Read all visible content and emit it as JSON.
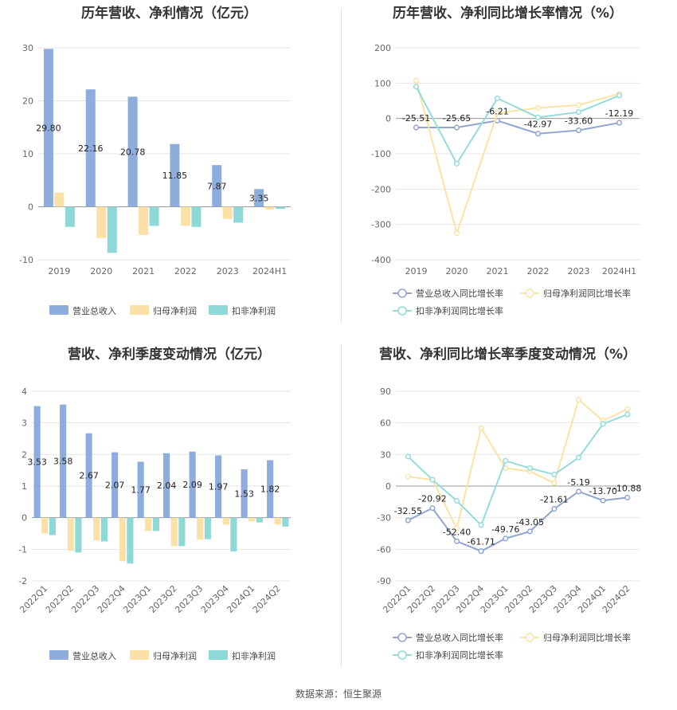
{
  "colors": {
    "revenue": "#8FADDC",
    "net_profit": "#FBE0A8",
    "deducted_profit": "#8ED8D8",
    "revenue_line": "#8FA5CF",
    "net_profit_line": "#FBE3A6",
    "deducted_line": "#94DCDC",
    "grid": "#e6e6e6"
  },
  "source": "数据来源：恒生聚源",
  "chart_data": [
    {
      "type": "bar",
      "title": "历年营收、净利情况（亿元）",
      "categories": [
        "2019",
        "2020",
        "2021",
        "2022",
        "2023",
        "2024H1"
      ],
      "ylim": [
        -10,
        30
      ],
      "yticks": [
        -10,
        0,
        10,
        20,
        30
      ],
      "series": [
        {
          "name": "营业总收入",
          "values": [
            29.8,
            22.16,
            20.78,
            11.85,
            7.87,
            3.35
          ],
          "labels": [
            "29.80",
            "22.16",
            "20.78",
            "11.85",
            "7.87",
            "3.35"
          ]
        },
        {
          "name": "归母净利润",
          "values": [
            2.7,
            -5.9,
            -5.3,
            -3.6,
            -2.3,
            -0.5
          ]
        },
        {
          "name": "扣非净利润",
          "values": [
            -3.8,
            -8.7,
            -3.6,
            -3.8,
            -3.0,
            -0.4
          ]
        }
      ],
      "legend": "bottom"
    },
    {
      "type": "line",
      "title": "历年营收、净利同比增长率情况（%）",
      "categories": [
        "2019",
        "2020",
        "2021",
        "2022",
        "2023",
        "2024H1"
      ],
      "ylim": [
        -400,
        200
      ],
      "yticks": [
        -400,
        -300,
        -200,
        -100,
        0,
        100,
        200
      ],
      "series": [
        {
          "name": "营业总收入同比增长率",
          "values": [
            -25.51,
            -25.65,
            -6.21,
            -42.97,
            -33.6,
            -12.19
          ],
          "labels": [
            "-25.51",
            "-25.65",
            "-6.21",
            "-42.97",
            "-33.60",
            "-12.19"
          ]
        },
        {
          "name": "归母净利润同比增长率",
          "values": [
            107,
            -325,
            15,
            30,
            38,
            70
          ]
        },
        {
          "name": "扣非净利润同比增长率",
          "values": [
            90,
            -128,
            57,
            3,
            18,
            65
          ]
        }
      ],
      "legend": "bottom"
    },
    {
      "type": "bar",
      "title": "营收、净利季度变动情况（亿元）",
      "categories": [
        "2022Q1",
        "2022Q2",
        "2022Q3",
        "2022Q4",
        "2023Q1",
        "2023Q2",
        "2023Q3",
        "2023Q4",
        "2024Q1",
        "2024Q2"
      ],
      "ylim": [
        -2,
        4
      ],
      "yticks": [
        -2,
        -1,
        0,
        1,
        2,
        3,
        4
      ],
      "series": [
        {
          "name": "营业总收入",
          "values": [
            3.53,
            3.58,
            2.67,
            2.07,
            1.77,
            2.04,
            2.09,
            1.97,
            1.53,
            1.82
          ],
          "labels": [
            "3.53",
            "3.58",
            "2.67",
            "2.07",
            "1.77",
            "2.04",
            "2.09",
            "1.97",
            "1.53",
            "1.82"
          ]
        },
        {
          "name": "归母净利润",
          "values": [
            -0.5,
            -1.05,
            -0.72,
            -1.38,
            -0.42,
            -0.9,
            -0.7,
            -0.22,
            -0.12,
            -0.22
          ]
        },
        {
          "name": "扣非净利润",
          "values": [
            -0.55,
            -1.1,
            -0.75,
            -1.45,
            -0.42,
            -0.9,
            -0.68,
            -1.07,
            -0.15,
            -0.28
          ]
        }
      ],
      "legend": "bottom"
    },
    {
      "type": "line",
      "title": "营收、净利同比增长率季度变动情况（%）",
      "categories": [
        "2022Q1",
        "2022Q2",
        "2022Q3",
        "2022Q4",
        "2023Q1",
        "2023Q2",
        "2023Q3",
        "2023Q4",
        "2024Q1",
        "2024Q2"
      ],
      "ylim": [
        -90,
        90
      ],
      "yticks": [
        -90,
        -60,
        -30,
        0,
        30,
        60,
        90
      ],
      "series": [
        {
          "name": "营业总收入同比增长率",
          "values": [
            -32.55,
            -20.92,
            -52.4,
            -61.71,
            -49.76,
            -43.05,
            -21.61,
            -5.19,
            -13.7,
            -10.88
          ],
          "labels": [
            "-32.55",
            "-20.92",
            "-52.40",
            "-61.71",
            "-49.76",
            "-43.05",
            "-21.61",
            "-5.19",
            "-13.70",
            "-10.88"
          ]
        },
        {
          "name": "归母净利润同比增长率",
          "values": [
            9,
            6,
            -40,
            55,
            17,
            14,
            3,
            82,
            62,
            73
          ]
        },
        {
          "name": "扣非净利润同比增长率",
          "values": [
            28,
            6,
            -14,
            -37,
            24,
            17,
            11,
            27,
            59,
            68
          ]
        }
      ],
      "legend": "bottom"
    }
  ]
}
